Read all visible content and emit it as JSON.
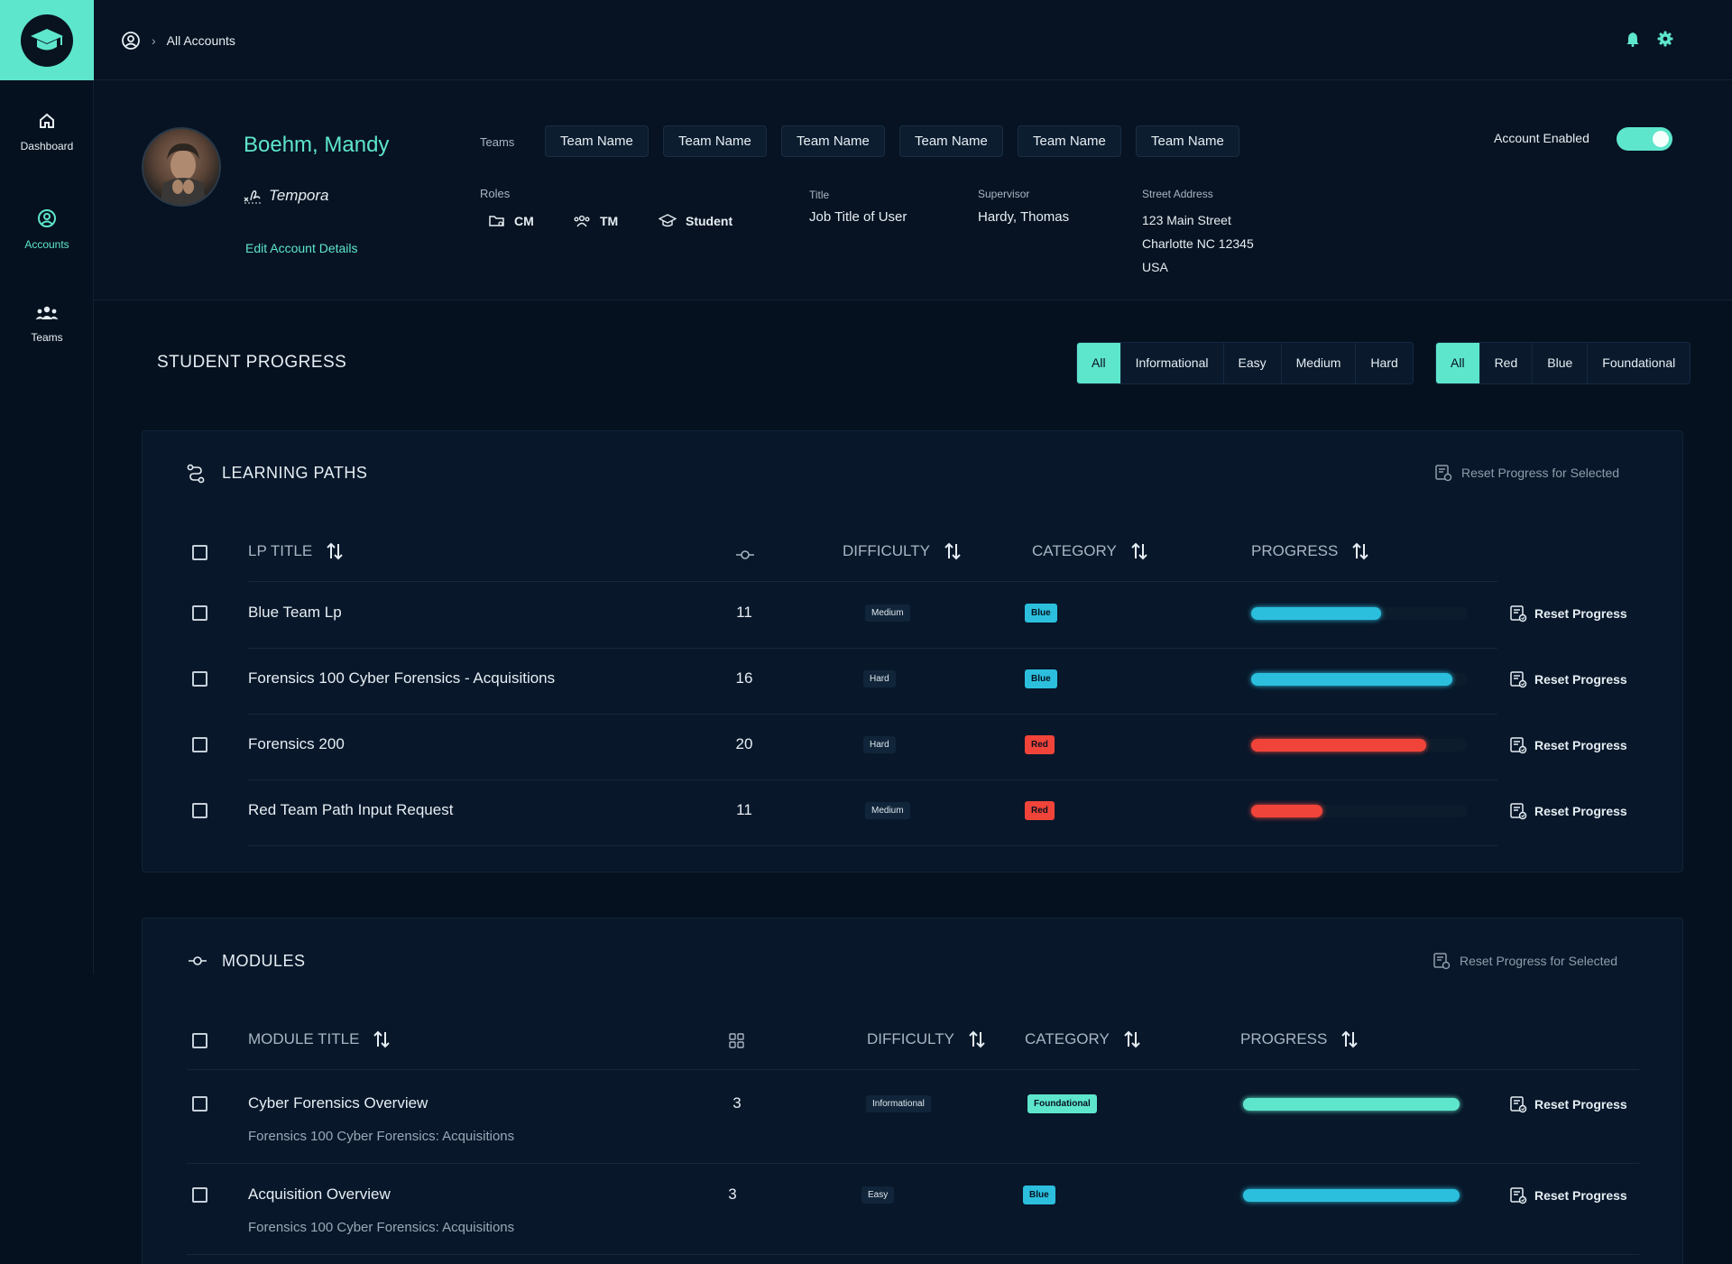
{
  "nav": {
    "items": [
      {
        "label": "Dashboard",
        "icon": "home-icon"
      },
      {
        "label": "Accounts",
        "icon": "account-circle-icon"
      },
      {
        "label": "Teams",
        "icon": "teams-icon"
      }
    ]
  },
  "breadcrumb": {
    "current": "All Accounts"
  },
  "profile": {
    "name": "Boehm, Mandy",
    "organization": "Tempora",
    "edit_label": "Edit Account Details",
    "teams_label": "Teams",
    "teams": [
      "Team Name",
      "Team Name",
      "Team Name",
      "Team Name",
      "Team Name",
      "Team Name"
    ],
    "roles_label": "Roles",
    "roles": [
      {
        "label": "CM",
        "icon": "folder-user-icon"
      },
      {
        "label": "TM",
        "icon": "group-icon"
      },
      {
        "label": "Student",
        "icon": "graduation-cap-icon"
      }
    ],
    "title_label": "Title",
    "title_value": "Job Title of User",
    "supervisor_label": "Supervisor",
    "supervisor_value": "Hardy,  Thomas",
    "address_label": "Street Address",
    "address_line1": "123 Main Street",
    "address_line2": "Charlotte  NC  12345",
    "address_line3": "USA",
    "account_enabled_label": "Account Enabled",
    "account_enabled": true
  },
  "student_progress": {
    "title": "STUDENT PROGRESS",
    "difficulty_filters": [
      "All",
      "Informational",
      "Easy",
      "Medium",
      "Hard"
    ],
    "difficulty_selected": "All",
    "category_filters": [
      "All",
      "Red",
      "Blue",
      "Foundational"
    ],
    "category_selected": "All"
  },
  "learning_paths": {
    "title": "LEARNING PATHS",
    "reset_selected_label": "Reset Progress for Selected",
    "columns": {
      "title": "LP TITLE",
      "difficulty": "DIFFICULTY",
      "category": "CATEGORY",
      "progress": "PROGRESS"
    },
    "rows": [
      {
        "title": "Blue Team Lp",
        "count": "11",
        "difficulty": "Medium",
        "category": "Blue",
        "progress": 0.6
      },
      {
        "title": "Forensics 100 Cyber Forensics - Acquisitions",
        "count": "16",
        "difficulty": "Hard",
        "category": "Blue",
        "progress": 0.93
      },
      {
        "title": "Forensics 200",
        "count": "20",
        "difficulty": "Hard",
        "category": "Red",
        "progress": 0.81
      },
      {
        "title": "Red Team Path Input Request",
        "count": "11",
        "difficulty": "Medium",
        "category": "Red",
        "progress": 0.33
      }
    ],
    "reset_label": "Reset Progress"
  },
  "modules": {
    "title": "MODULES",
    "reset_selected_label": "Reset Progress for Selected",
    "columns": {
      "title": "MODULE TITLE",
      "difficulty": "DIFFICULTY",
      "category": "CATEGORY",
      "progress": "PROGRESS"
    },
    "rows": [
      {
        "title": "Cyber Forensics Overview",
        "subtitle": "Forensics 100 Cyber Forensics: Acquisitions",
        "count": "3",
        "difficulty": "Informational",
        "category": "Foundational",
        "progress": 1.0
      },
      {
        "title": "Acquisition Overview",
        "subtitle": "Forensics 100 Cyber Forensics: Acquisitions",
        "count": "3",
        "difficulty": "Easy",
        "category": "Blue",
        "progress": 1.0
      }
    ],
    "reset_label": "Reset Progress"
  },
  "colors": {
    "accent": "#5ee6cc",
    "blue": "#2bbfdd",
    "red": "#f0443a",
    "foundational": "#5ee6cc",
    "background": "#061120"
  }
}
